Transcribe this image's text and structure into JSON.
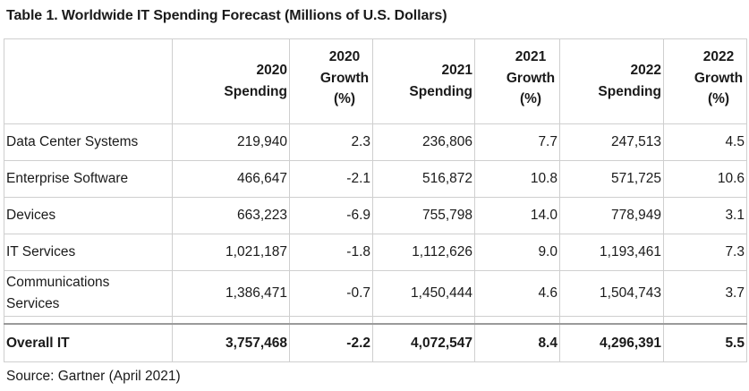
{
  "title": "Table 1. Worldwide IT Spending Forecast (Millions of U.S. Dollars)",
  "table": {
    "headers": [
      {
        "line1": "",
        "line2": "",
        "line3": ""
      },
      {
        "line1": "2020",
        "line2": "Spending",
        "line3": ""
      },
      {
        "line1": "2020",
        "line2": "Growth",
        "line3": "(%)"
      },
      {
        "line1": "2021",
        "line2": "Spending",
        "line3": ""
      },
      {
        "line1": "2021",
        "line2": "Growth",
        "line3": "(%)"
      },
      {
        "line1": "2022",
        "line2": "Spending",
        "line3": ""
      },
      {
        "line1": "2022",
        "line2": "Growth",
        "line3": "(%)"
      }
    ],
    "rows": [
      {
        "label": "Data Center Systems",
        "spend_2020": "219,940",
        "growth_2020": "2.3",
        "spend_2021": "236,806",
        "growth_2021": "7.7",
        "spend_2022": "247,513",
        "growth_2022": "4.5"
      },
      {
        "label": "Enterprise Software",
        "spend_2020": "466,647",
        "growth_2020": "-2.1",
        "spend_2021": "516,872",
        "growth_2021": "10.8",
        "spend_2022": "571,725",
        "growth_2022": "10.6"
      },
      {
        "label": "Devices",
        "spend_2020": "663,223",
        "growth_2020": "-6.9",
        "spend_2021": "755,798",
        "growth_2021": "14.0",
        "spend_2022": "778,949",
        "growth_2022": "3.1"
      },
      {
        "label": "IT Services",
        "spend_2020": "1,021,187",
        "growth_2020": "-1.8",
        "spend_2021": "1,112,626",
        "growth_2021": "9.0",
        "spend_2022": "1,193,461",
        "growth_2022": "7.3"
      },
      {
        "label": "Communications Services",
        "spend_2020": "1,386,471",
        "growth_2020": "-0.7",
        "spend_2021": "1,450,444",
        "growth_2021": "4.6",
        "spend_2022": "1,504,743",
        "growth_2022": "3.7"
      }
    ],
    "total": {
      "label": "Overall IT",
      "spend_2020": "3,757,468",
      "growth_2020": "-2.2",
      "spend_2021": "4,072,547",
      "growth_2021": "8.4",
      "spend_2022": "4,296,391",
      "growth_2022": "5.5"
    }
  },
  "source": "Source: Gartner (April 2021)",
  "colors": {
    "border": "#cfcfcf",
    "total_border": "#9a9a9a",
    "text": "#1a1a1a"
  }
}
